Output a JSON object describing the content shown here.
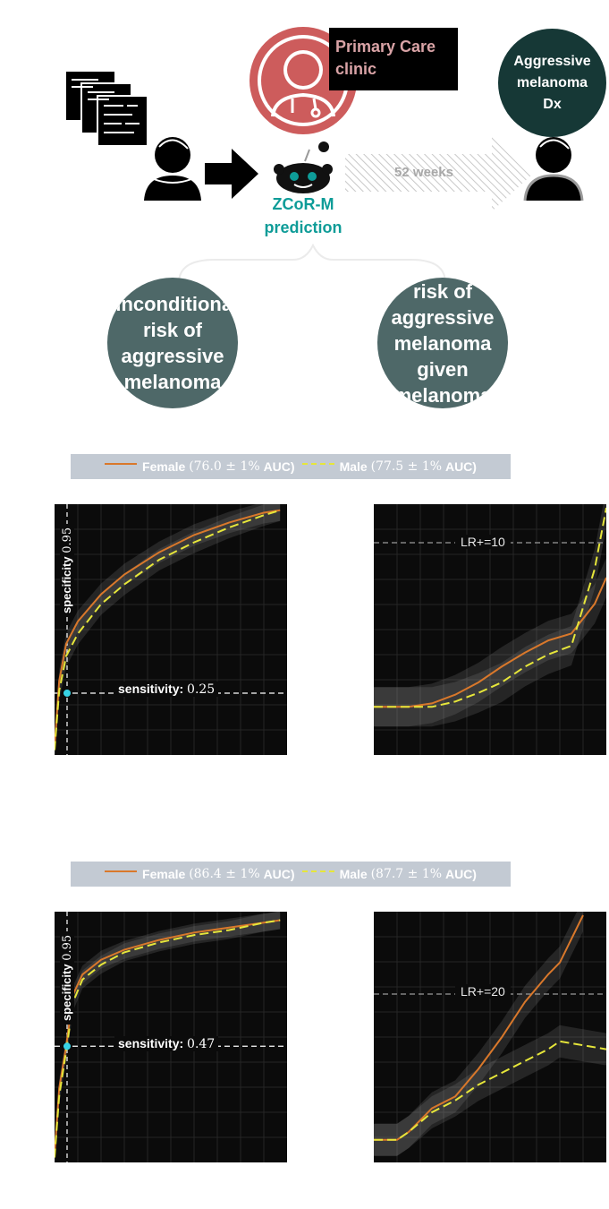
{
  "diagram": {
    "clinic_label": "Primary Care clinic",
    "outcome_label": "Aggressive melanoma Dx",
    "model_name": "ZCoR-M",
    "model_caption": "prediction",
    "timeline_label": "52 weeks",
    "left_bubble_text": "unconditional risk of aggressive melanoma",
    "right_bubble_text": "risk of aggressive melanoma given melanoma",
    "colors": {
      "clinic_red": "#cd5c5c",
      "clinic_label_text": "#d9a3a6",
      "outcome_dark": "#163836",
      "model_teal": "#0e9c98",
      "bubble_slate": "#4e6868",
      "hatch": "#c8c8c8"
    }
  },
  "legend_colors": {
    "female": "#d9782b",
    "male": "#e6e63a"
  },
  "rows": [
    {
      "legend": {
        "female_label": "Female",
        "female_stat": "(76.0 ± 1%",
        "male_label": "Male",
        "male_stat": "(77.5 ± 1%",
        "auc": "AUC)"
      },
      "roc": {
        "specificity_label": "specificity",
        "specificity_value": "0.95",
        "sensitivity_label": "sensitivity:",
        "sensitivity_value": "0.25"
      },
      "lr": {
        "label": "LR+=10"
      }
    },
    {
      "legend": {
        "female_label": "Female",
        "female_stat": "(86.4 ± 1%",
        "male_label": "Male",
        "male_stat": "(87.7 ± 1%",
        "auc": "AUC)"
      },
      "roc": {
        "specificity_label": "specificity",
        "specificity_value": "0.95",
        "sensitivity_label": "sensitivity:",
        "sensitivity_value": "0.47"
      },
      "lr": {
        "label": "LR+=20"
      }
    }
  ],
  "chart_data": [
    {
      "type": "line",
      "title": "",
      "xlabel": "",
      "ylabel": "",
      "xlim": [
        0,
        1
      ],
      "ylim": [
        0,
        1
      ],
      "grid": true,
      "legend": "top",
      "series": [
        {
          "name": "Female",
          "color": "#d9782b",
          "x": [
            0,
            0.02,
            0.05,
            0.1,
            0.2,
            0.3,
            0.45,
            0.6,
            0.75,
            0.9,
            0.97
          ],
          "y": [
            0.03,
            0.3,
            0.45,
            0.54,
            0.65,
            0.73,
            0.82,
            0.89,
            0.94,
            0.98,
            0.99
          ]
        },
        {
          "name": "Male",
          "color": "#e6e63a",
          "x": [
            0,
            0.02,
            0.05,
            0.1,
            0.2,
            0.3,
            0.45,
            0.6,
            0.75,
            0.9,
            0.97
          ],
          "y": [
            0.02,
            0.26,
            0.4,
            0.49,
            0.61,
            0.69,
            0.79,
            0.86,
            0.92,
            0.97,
            0.99
          ]
        }
      ],
      "annotations": [
        {
          "type": "vline",
          "x": 0.05,
          "label": "specificity 0.95"
        },
        {
          "type": "hline",
          "y": 0.25,
          "label": "sensitivity: 0.25"
        }
      ]
    },
    {
      "type": "line",
      "title": "",
      "xlabel": "",
      "ylabel": "",
      "xlim": [
        0,
        1
      ],
      "ylim": [
        0,
        12
      ],
      "grid": true,
      "legend": "top",
      "series": [
        {
          "name": "Female",
          "color": "#d9782b",
          "x": [
            0,
            0.15,
            0.25,
            0.35,
            0.45,
            0.55,
            0.65,
            0.75,
            0.85,
            0.95,
            1.0
          ],
          "y": [
            0.6,
            0.6,
            0.8,
            1.3,
            2.0,
            2.9,
            3.7,
            4.4,
            4.8,
            6.5,
            8.0
          ]
        },
        {
          "name": "Male",
          "color": "#e6e63a",
          "x": [
            0,
            0.15,
            0.25,
            0.35,
            0.45,
            0.55,
            0.65,
            0.75,
            0.85,
            0.95,
            1.0
          ],
          "y": [
            0.6,
            0.6,
            0.6,
            0.9,
            1.4,
            2.0,
            2.9,
            3.6,
            4.1,
            8.5,
            12.0
          ]
        }
      ],
      "annotations": [
        {
          "type": "hline",
          "y": 10,
          "label": "LR+=10"
        }
      ]
    },
    {
      "type": "line",
      "title": "",
      "xlabel": "",
      "ylabel": "",
      "xlim": [
        0,
        1
      ],
      "ylim": [
        0,
        1
      ],
      "grid": true,
      "legend": "top",
      "series": [
        {
          "name": "Female",
          "color": "#d9782b",
          "x": [
            0,
            0.02,
            0.05,
            0.08,
            0.12,
            0.2,
            0.3,
            0.45,
            0.6,
            0.75,
            0.9,
            0.97
          ],
          "y": [
            0.03,
            0.3,
            0.47,
            0.68,
            0.76,
            0.82,
            0.86,
            0.9,
            0.93,
            0.95,
            0.97,
            0.98
          ]
        },
        {
          "name": "Male",
          "color": "#e6e63a",
          "x": [
            0,
            0.02,
            0.05,
            0.08,
            0.12,
            0.2,
            0.3,
            0.45,
            0.6,
            0.75,
            0.9,
            0.97
          ],
          "y": [
            0.02,
            0.27,
            0.45,
            0.65,
            0.74,
            0.8,
            0.85,
            0.89,
            0.92,
            0.94,
            0.97,
            0.98
          ]
        }
      ],
      "annotations": [
        {
          "type": "vline",
          "x": 0.05,
          "label": "specificity 0.95"
        },
        {
          "type": "hline",
          "y": 0.47,
          "label": "sensitivity: 0.47"
        }
      ]
    },
    {
      "type": "line",
      "title": "",
      "xlabel": "",
      "ylabel": "",
      "xlim": [
        0,
        1
      ],
      "ylim": [
        0,
        30
      ],
      "grid": true,
      "legend": "top",
      "series": [
        {
          "name": "Female",
          "color": "#d9782b",
          "x": [
            0,
            0.1,
            0.15,
            0.25,
            0.35,
            0.45,
            0.55,
            0.65,
            0.75,
            0.8,
            0.9
          ],
          "y": [
            1.5,
            1.5,
            2.5,
            5.5,
            7.0,
            10.5,
            14.5,
            19.0,
            22.5,
            24.0,
            30.0
          ]
        },
        {
          "name": "Male",
          "color": "#e6e63a",
          "x": [
            0,
            0.1,
            0.15,
            0.25,
            0.35,
            0.45,
            0.55,
            0.65,
            0.75,
            0.8,
            0.9,
            1.0
          ],
          "y": [
            1.5,
            1.5,
            2.5,
            5.0,
            6.5,
            8.5,
            10.0,
            11.5,
            13.0,
            14.0,
            13.5,
            13.0
          ]
        }
      ],
      "annotations": [
        {
          "type": "hline",
          "y": 20,
          "label": "LR+=20"
        }
      ]
    }
  ]
}
